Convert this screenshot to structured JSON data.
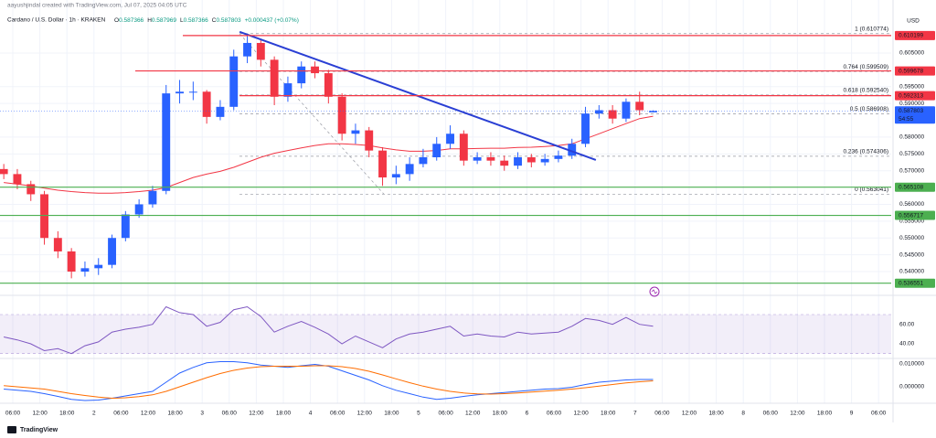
{
  "chart_data": [
    {
      "type": "candlestick",
      "caption": "aayushjindal created with TradingView.com, Jul 07, 2025 04:05 UTC",
      "title": "Cardano / U.S. Dollar · 1h · KRAKEN",
      "ohlc_labels": [
        "O",
        "H",
        "L",
        "C"
      ],
      "change_label": "+0.000437 (+0.07%)",
      "currency": "USD",
      "countdown": "54:55",
      "footer": "TradingView",
      "up_color": "#2962ff",
      "down_color": "#f23645",
      "x": [
        4,
        7,
        10,
        13,
        16,
        19,
        22,
        25,
        28,
        31,
        34,
        37,
        40,
        43,
        46,
        49,
        52,
        55,
        58,
        61,
        64,
        67,
        70,
        73,
        76,
        79,
        82,
        85,
        88,
        91,
        94,
        97,
        100,
        103,
        106,
        109,
        112,
        115,
        118,
        121,
        124,
        127,
        130,
        133,
        136,
        139,
        142,
        145,
        148
      ],
      "open": [
        0.5705,
        0.569,
        0.566,
        0.563,
        0.55,
        0.546,
        0.54,
        0.541,
        0.542,
        0.55,
        0.557,
        0.56,
        0.564,
        0.593,
        0.5935,
        0.5935,
        0.586,
        0.589,
        0.604,
        0.608,
        0.603,
        0.592,
        0.596,
        0.601,
        0.599,
        0.592,
        0.581,
        0.582,
        0.576,
        0.568,
        0.569,
        0.572,
        0.574,
        0.578,
        0.581,
        0.573,
        0.574,
        0.573,
        0.5715,
        0.574,
        0.5725,
        0.5735,
        0.5745,
        0.578,
        0.587,
        0.588,
        0.5855,
        0.5905,
        0.587366
      ],
      "high": [
        0.572,
        0.5705,
        0.567,
        0.564,
        0.552,
        0.547,
        0.543,
        0.544,
        0.551,
        0.558,
        0.5615,
        0.5655,
        0.5955,
        0.597,
        0.5965,
        0.594,
        0.591,
        0.606,
        0.6105,
        0.609,
        0.604,
        0.598,
        0.6025,
        0.6025,
        0.6,
        0.593,
        0.584,
        0.583,
        0.577,
        0.5715,
        0.574,
        0.5765,
        0.58,
        0.5835,
        0.582,
        0.5755,
        0.5755,
        0.5745,
        0.5755,
        0.575,
        0.575,
        0.576,
        0.5795,
        0.589,
        0.5895,
        0.5895,
        0.5915,
        0.5935,
        0.587969
      ],
      "low": [
        0.5675,
        0.5645,
        0.561,
        0.548,
        0.544,
        0.538,
        0.5385,
        0.539,
        0.541,
        0.549,
        0.556,
        0.559,
        0.563,
        0.59,
        0.591,
        0.584,
        0.585,
        0.588,
        0.602,
        0.601,
        0.5895,
        0.5905,
        0.5945,
        0.5975,
        0.59,
        0.579,
        0.578,
        0.574,
        0.5655,
        0.566,
        0.567,
        0.571,
        0.573,
        0.5765,
        0.5715,
        0.572,
        0.5715,
        0.57,
        0.5705,
        0.571,
        0.5715,
        0.5725,
        0.5735,
        0.577,
        0.5855,
        0.584,
        0.5845,
        0.5865,
        0.587366
      ],
      "close": [
        0.569,
        0.566,
        0.563,
        0.55,
        0.546,
        0.54,
        0.541,
        0.542,
        0.55,
        0.557,
        0.56,
        0.564,
        0.593,
        0.5935,
        0.5935,
        0.586,
        0.589,
        0.604,
        0.608,
        0.603,
        0.592,
        0.596,
        0.601,
        0.599,
        0.592,
        0.581,
        0.582,
        0.576,
        0.568,
        0.569,
        0.572,
        0.574,
        0.578,
        0.581,
        0.573,
        0.574,
        0.573,
        0.5715,
        0.574,
        0.5725,
        0.5735,
        0.5745,
        0.578,
        0.587,
        0.588,
        0.5855,
        0.5905,
        0.588,
        0.587803
      ],
      "series": [
        {
          "color": "#f23645",
          "values": [
            0.5665,
            0.566,
            0.5655,
            0.5648,
            0.5642,
            0.5638,
            0.5635,
            0.5633,
            0.5633,
            0.5635,
            0.5638,
            0.5642,
            0.565,
            0.5665,
            0.568,
            0.569,
            0.5698,
            0.571,
            0.5725,
            0.574,
            0.5752,
            0.576,
            0.5768,
            0.5775,
            0.578,
            0.578,
            0.5778,
            0.5775,
            0.5768,
            0.5762,
            0.5758,
            0.5758,
            0.576,
            0.5765,
            0.5765,
            0.5766,
            0.5767,
            0.5767,
            0.5769,
            0.577,
            0.5772,
            0.5775,
            0.578,
            0.5795,
            0.581,
            0.5825,
            0.584,
            0.5855,
            0.5862
          ]
        }
      ],
      "trendline": {
        "color": "#2a3fd4",
        "x": [
          56.3,
          135.3
        ],
        "values": [
          0.6113,
          0.5732
        ]
      },
      "levels": [
        {
          "value": 0.610199,
          "color": "#f23645"
        },
        {
          "value": 0.599678,
          "color": "#f23645"
        },
        {
          "value": 0.592313,
          "color": "#f23645"
        },
        {
          "value": 0.565108,
          "color": "#4caf50"
        },
        {
          "value": 0.556717,
          "color": "#4caf50"
        },
        {
          "value": 0.536551,
          "color": "#4caf50"
        }
      ],
      "fib_levels": [
        {
          "label": "1 (0.610774)",
          "value": 0.610774,
          "color": "#5b9bd5"
        },
        {
          "label": "0.764 (0.599509)",
          "value": 0.599509,
          "color": "#f23645"
        },
        {
          "label": "0.618 (0.592540)",
          "value": 0.59254,
          "color": "#4caf50"
        },
        {
          "label": "0.5 (0.586908)",
          "value": 0.586908,
          "color": "#787b86"
        },
        {
          "label": "0.236 (0.574306)",
          "value": 0.574306,
          "color": "#f23645"
        },
        {
          "label": "0 (0.563041)",
          "value": 0.563041,
          "color": "#787b86"
        }
      ],
      "xlim": [
        3.16,
        200.8
      ],
      "xticks": [
        {
          "value": 6,
          "label": "06:00"
        },
        {
          "value": 12,
          "label": "12:00"
        },
        {
          "value": 18,
          "label": "18:00"
        },
        {
          "value": 24,
          "label": "2"
        },
        {
          "value": 30,
          "label": "06:00"
        },
        {
          "value": 36,
          "label": "12:00"
        },
        {
          "value": 42,
          "label": "18:00"
        },
        {
          "value": 48,
          "label": "3"
        },
        {
          "value": 54,
          "label": "06:00"
        },
        {
          "value": 60,
          "label": "12:00"
        },
        {
          "value": 66,
          "label": "18:00"
        },
        {
          "value": 72,
          "label": "4"
        },
        {
          "value": 78,
          "label": "06:00"
        },
        {
          "value": 84,
          "label": "12:00"
        },
        {
          "value": 90,
          "label": "18:00"
        },
        {
          "value": 96,
          "label": "5"
        },
        {
          "value": 102,
          "label": "06:00"
        },
        {
          "value": 108,
          "label": "12:00"
        },
        {
          "value": 114,
          "label": "18:00"
        },
        {
          "value": 120,
          "label": "6"
        },
        {
          "value": 126,
          "label": "06:00"
        },
        {
          "value": 132,
          "label": "12:00"
        },
        {
          "value": 138,
          "label": "18:00"
        },
        {
          "value": 144,
          "label": "7"
        },
        {
          "value": 150,
          "label": "06:00"
        },
        {
          "value": 156,
          "label": "12:00"
        },
        {
          "value": 162,
          "label": "18:00"
        },
        {
          "value": 168,
          "label": "8"
        },
        {
          "value": 174,
          "label": "06:00"
        },
        {
          "value": 180,
          "label": "12:00"
        },
        {
          "value": 186,
          "label": "18:00"
        },
        {
          "value": 192,
          "label": "9"
        },
        {
          "value": 198,
          "label": "06:00"
        }
      ],
      "ylim": [
        0.535,
        0.618
      ],
      "yticks": [
        {
          "value": 0.605,
          "label": "0.605000"
        },
        {
          "value": 0.595,
          "label": "0.595000"
        },
        {
          "value": 0.59,
          "label": "0.590000"
        },
        {
          "value": 0.58,
          "label": "0.580000"
        },
        {
          "value": 0.575,
          "label": "0.575000"
        },
        {
          "value": 0.57,
          "label": "0.570000"
        },
        {
          "value": 0.56,
          "label": "0.560000"
        },
        {
          "value": 0.555,
          "label": "0.555000"
        },
        {
          "value": 0.55,
          "label": "0.550000"
        },
        {
          "value": 0.545,
          "label": "0.545000"
        },
        {
          "value": 0.54,
          "label": "0.540000"
        }
      ],
      "grid": true
    },
    {
      "type": "line",
      "x": [
        4,
        7,
        10,
        13,
        16,
        19,
        22,
        25,
        28,
        31,
        34,
        37,
        40,
        43,
        46,
        49,
        52,
        55,
        58,
        61,
        64,
        67,
        70,
        73,
        76,
        79,
        82,
        85,
        88,
        91,
        94,
        97,
        100,
        103,
        106,
        109,
        112,
        115,
        118,
        121,
        124,
        127,
        130,
        133,
        136,
        139,
        142,
        145,
        148
      ],
      "series": [
        {
          "color": "#7e57c2",
          "values": [
            47,
            44,
            40,
            33,
            35,
            30,
            38,
            42,
            52,
            55,
            57,
            60,
            78,
            72,
            70,
            58,
            62,
            75,
            78,
            68,
            52,
            58,
            63,
            57,
            50,
            40,
            48,
            42,
            36,
            45,
            50,
            52,
            55,
            58,
            48,
            50,
            48,
            47,
            52,
            50,
            51,
            52,
            58,
            66,
            64,
            60,
            67,
            60,
            58
          ]
        }
      ],
      "band": [
        30,
        70
      ],
      "xlim": [
        3.16,
        200.8
      ],
      "ylim": [
        25,
        85
      ],
      "yticks": [
        {
          "value": 60,
          "label": "60.00"
        },
        {
          "value": 40,
          "label": "40.00"
        }
      ]
    },
    {
      "type": "line",
      "x": [
        4,
        7,
        10,
        13,
        16,
        19,
        22,
        25,
        28,
        31,
        34,
        37,
        40,
        43,
        46,
        49,
        52,
        55,
        58,
        61,
        64,
        67,
        70,
        73,
        76,
        79,
        82,
        85,
        88,
        91,
        94,
        97,
        100,
        103,
        106,
        109,
        112,
        115,
        118,
        121,
        124,
        127,
        130,
        133,
        136,
        139,
        142,
        145,
        148
      ],
      "series": [
        {
          "color": "#2962ff",
          "values": [
            -0.001,
            -0.0015,
            -0.002,
            -0.003,
            -0.0042,
            -0.0055,
            -0.006,
            -0.0058,
            -0.005,
            -0.004,
            -0.003,
            -0.002,
            0.002,
            0.006,
            0.0085,
            0.0105,
            0.011,
            0.011,
            0.0105,
            0.0095,
            0.009,
            0.0085,
            0.0092,
            0.0098,
            0.009,
            0.007,
            0.005,
            0.003,
            0.0005,
            -0.0015,
            -0.003,
            -0.0045,
            -0.0055,
            -0.005,
            -0.0042,
            -0.0035,
            -0.003,
            -0.0025,
            -0.002,
            -0.0015,
            -0.001,
            -0.0008,
            -0.0002,
            0.001,
            0.002,
            0.0025,
            0.003,
            0.0032,
            0.0032
          ]
        },
        {
          "color": "#ff6d00",
          "values": [
            0.0005,
            0.0,
            -0.0005,
            -0.001,
            -0.002,
            -0.003,
            -0.0038,
            -0.0045,
            -0.005,
            -0.0048,
            -0.0043,
            -0.0035,
            -0.002,
            0.0,
            0.002,
            0.004,
            0.0058,
            0.0072,
            0.0082,
            0.0088,
            0.009,
            0.009,
            0.009,
            0.0092,
            0.0092,
            0.0088,
            0.008,
            0.0068,
            0.0052,
            0.0035,
            0.0018,
            0.0003,
            -0.001,
            -0.002,
            -0.0027,
            -0.0031,
            -0.0032,
            -0.003,
            -0.0027,
            -0.0023,
            -0.0019,
            -0.0015,
            -0.001,
            -0.0004,
            0.0003,
            0.001,
            0.0017,
            0.0022,
            0.0026
          ]
        }
      ],
      "xlim": [
        3.16,
        200.8
      ],
      "ylim": [
        -0.0068,
        0.0124
      ],
      "yticks": [
        {
          "value": 0.01,
          "label": "0.010000"
        },
        {
          "value": 0,
          "label": "0.000000"
        }
      ]
    }
  ]
}
